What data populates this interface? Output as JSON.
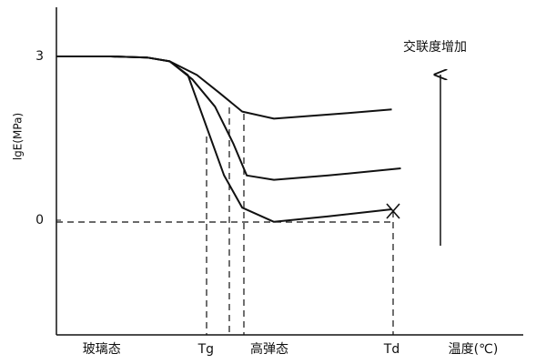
{
  "chart_data": {
    "type": "line",
    "y_label": "lgE(MPa)",
    "x_label": "温度(℃)",
    "annotation": "交联度增加",
    "ylim": [
      -2.1,
      3.9
    ],
    "yticks": [
      0,
      3
    ],
    "xlim": [
      0,
      100
    ],
    "xticks": [
      {
        "value": 10,
        "label": "玻璃态"
      },
      {
        "value": 33,
        "label": "Tg"
      },
      {
        "value": 47,
        "label": "高弹态"
      },
      {
        "value": 74,
        "label": "Td"
      }
    ],
    "color": "#111111",
    "series": [
      {
        "x": [
          0,
          12,
          20,
          25,
          31,
          36,
          41,
          48,
          56,
          64,
          74
        ],
        "values": [
          3,
          3,
          2.98,
          2.91,
          2.66,
          2.33,
          1.99,
          1.86,
          1.91,
          1.96,
          2.03
        ]
      },
      {
        "x": [
          0,
          12,
          20,
          25,
          30,
          35,
          39,
          42,
          48,
          60,
          76
        ],
        "values": [
          3,
          3,
          2.98,
          2.91,
          2.58,
          2.08,
          1.41,
          0.82,
          0.74,
          0.82,
          0.95
        ]
      },
      {
        "x": [
          0,
          12,
          20,
          25,
          29,
          33,
          37,
          41,
          48,
          60,
          74
        ],
        "values": [
          3,
          3,
          2.98,
          2.91,
          2.66,
          1.74,
          0.82,
          0.23,
          -0.03,
          0.07,
          0.2
        ]
      }
    ]
  }
}
